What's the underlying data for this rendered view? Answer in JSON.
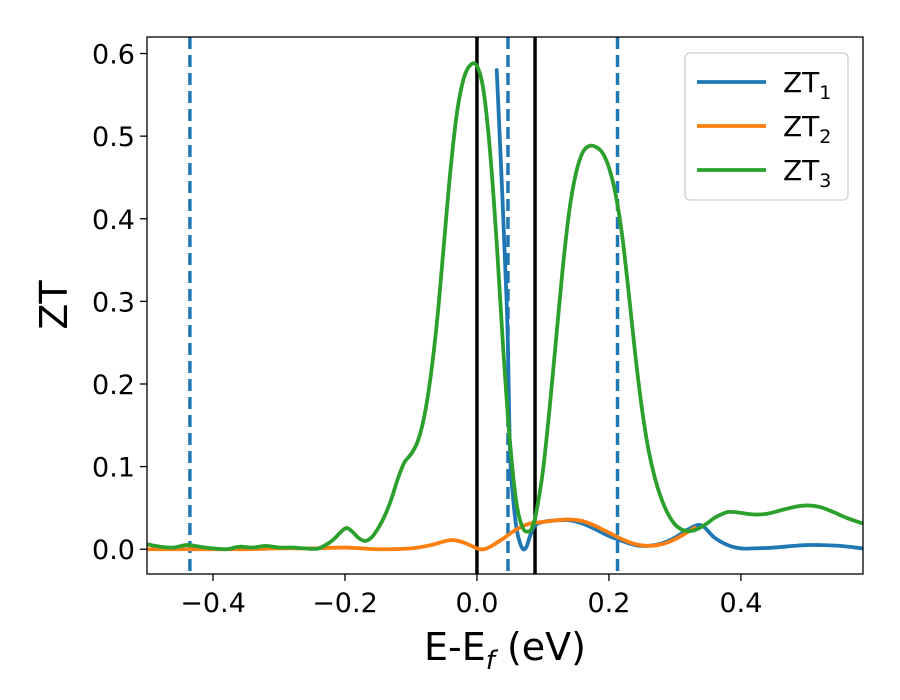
{
  "chart_data": {
    "type": "line",
    "xlabel": {
      "base": "E-E",
      "sub": "f",
      "unit": " (eV)"
    },
    "ylabel": "ZT",
    "xlim": [
      -0.5,
      0.585
    ],
    "ylim": [
      -0.03,
      0.62
    ],
    "x_ticks": [
      -0.4,
      -0.2,
      0.0,
      0.2,
      0.4
    ],
    "x_tick_labels": [
      "−0.4",
      "−0.2",
      "0.0",
      "0.2",
      "0.4"
    ],
    "y_ticks": [
      0.0,
      0.1,
      0.2,
      0.3,
      0.4,
      0.5,
      0.6
    ],
    "y_tick_labels": [
      "0.0",
      "0.1",
      "0.2",
      "0.3",
      "0.4",
      "0.5",
      "0.6"
    ],
    "grid": false,
    "legend_position": "top-right",
    "vlines_solid": {
      "color": "#000000",
      "x": [
        0.0,
        0.088
      ]
    },
    "vlines_dashed": {
      "color": "#1f77b4",
      "x": [
        -0.435,
        0.047,
        0.213
      ]
    },
    "series": [
      {
        "name": "ZT1",
        "label_base": "ZT",
        "label_sub": "1",
        "color": "#1f77b4",
        "x": [
          0.03,
          0.045,
          0.05,
          0.055,
          0.06,
          0.065,
          0.07,
          0.075,
          0.08,
          0.085,
          0.09,
          0.1,
          0.12,
          0.14,
          0.16,
          0.18,
          0.2,
          0.22,
          0.24,
          0.26,
          0.28,
          0.3,
          0.32,
          0.34,
          0.36,
          0.38,
          0.4,
          0.42,
          0.45,
          0.48,
          0.5,
          0.52,
          0.55,
          0.585
        ],
        "y": [
          0.58,
          0.3,
          0.12,
          0.06,
          0.025,
          0.008,
          0.0,
          0.003,
          0.015,
          0.025,
          0.03,
          0.033,
          0.035,
          0.035,
          0.031,
          0.024,
          0.016,
          0.01,
          0.005,
          0.004,
          0.007,
          0.014,
          0.024,
          0.029,
          0.014,
          0.005,
          0.001,
          0.001,
          0.002,
          0.004,
          0.005,
          0.005,
          0.004,
          0.001
        ]
      },
      {
        "name": "ZT2",
        "label_base": "ZT",
        "label_sub": "2",
        "color": "#ff7f0e",
        "x": [
          -0.5,
          -0.45,
          -0.4,
          -0.35,
          -0.3,
          -0.25,
          -0.2,
          -0.15,
          -0.1,
          -0.07,
          -0.04,
          -0.02,
          0.0,
          0.01,
          0.02,
          0.04,
          0.06,
          0.08,
          0.1,
          0.12,
          0.14,
          0.16,
          0.18,
          0.2,
          0.22,
          0.24,
          0.26,
          0.28,
          0.3,
          0.32,
          0.33
        ],
        "y": [
          0.0,
          0.0,
          0.0,
          0.0,
          0.001,
          0.001,
          0.002,
          0.0,
          0.001,
          0.005,
          0.011,
          0.008,
          0.001,
          0.0,
          0.003,
          0.013,
          0.024,
          0.031,
          0.033,
          0.035,
          0.036,
          0.034,
          0.028,
          0.02,
          0.012,
          0.006,
          0.004,
          0.006,
          0.012,
          0.021,
          0.026
        ]
      },
      {
        "name": "ZT3",
        "label_base": "ZT",
        "label_sub": "3",
        "color": "#2ca02c",
        "x": [
          -0.5,
          -0.48,
          -0.46,
          -0.44,
          -0.42,
          -0.4,
          -0.38,
          -0.36,
          -0.34,
          -0.32,
          -0.3,
          -0.28,
          -0.26,
          -0.24,
          -0.22,
          -0.2,
          -0.19,
          -0.18,
          -0.17,
          -0.16,
          -0.15,
          -0.14,
          -0.13,
          -0.12,
          -0.11,
          -0.1,
          -0.09,
          -0.08,
          -0.07,
          -0.06,
          -0.05,
          -0.04,
          -0.03,
          -0.02,
          -0.01,
          0.0,
          0.01,
          0.02,
          0.03,
          0.04,
          0.05,
          0.06,
          0.07,
          0.08,
          0.085,
          0.09,
          0.1,
          0.11,
          0.12,
          0.13,
          0.14,
          0.15,
          0.16,
          0.17,
          0.18,
          0.19,
          0.2,
          0.21,
          0.22,
          0.23,
          0.24,
          0.25,
          0.26,
          0.27,
          0.28,
          0.29,
          0.3,
          0.31,
          0.32,
          0.33,
          0.34,
          0.35,
          0.36,
          0.37,
          0.38,
          0.39,
          0.4,
          0.42,
          0.44,
          0.46,
          0.48,
          0.5,
          0.52,
          0.54,
          0.56,
          0.585
        ],
        "y": [
          0.006,
          0.003,
          0.002,
          0.005,
          0.003,
          0.001,
          0.0,
          0.003,
          0.002,
          0.004,
          0.002,
          0.002,
          0.001,
          0.001,
          0.01,
          0.025,
          0.022,
          0.014,
          0.01,
          0.014,
          0.025,
          0.04,
          0.06,
          0.085,
          0.105,
          0.115,
          0.13,
          0.16,
          0.21,
          0.28,
          0.37,
          0.46,
          0.53,
          0.57,
          0.586,
          0.585,
          0.555,
          0.48,
          0.37,
          0.24,
          0.13,
          0.055,
          0.025,
          0.022,
          0.03,
          0.045,
          0.095,
          0.17,
          0.255,
          0.34,
          0.41,
          0.455,
          0.48,
          0.488,
          0.487,
          0.48,
          0.462,
          0.43,
          0.38,
          0.31,
          0.235,
          0.17,
          0.12,
          0.085,
          0.06,
          0.042,
          0.03,
          0.024,
          0.022,
          0.023,
          0.027,
          0.032,
          0.038,
          0.042,
          0.045,
          0.045,
          0.044,
          0.042,
          0.043,
          0.047,
          0.051,
          0.053,
          0.051,
          0.045,
          0.038,
          0.031
        ]
      }
    ]
  }
}
